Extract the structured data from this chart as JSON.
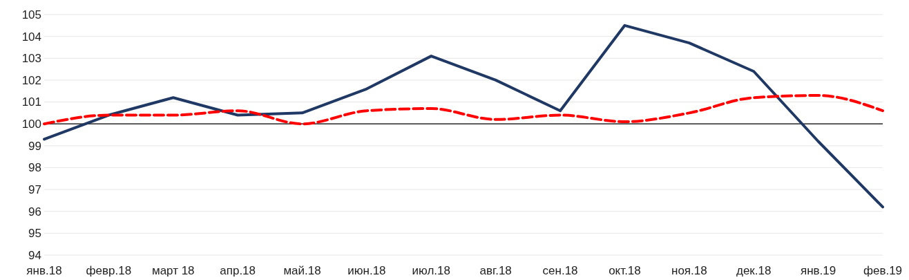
{
  "chart_data": {
    "type": "line",
    "categories": [
      "янв.18",
      "февр.18",
      "март 18",
      "апр.18",
      "май.18",
      "июн.18",
      "июл.18",
      "авг.18",
      "сен.18",
      "окт.18",
      "ноя.18",
      "дек.18",
      "янв.19",
      "фев.19"
    ],
    "series": [
      {
        "color": "#1f3864",
        "line_style": "solid",
        "values": [
          99.3,
          100.4,
          101.2,
          100.4,
          100.5,
          101.6,
          103.1,
          102.0,
          100.6,
          104.5,
          103.7,
          102.4,
          99.2,
          96.2
        ]
      },
      {
        "color": "#ff0000",
        "line_style": "dashed",
        "values": [
          100.0,
          100.4,
          100.4,
          100.6,
          100.0,
          100.6,
          100.7,
          100.2,
          100.4,
          100.1,
          100.5,
          101.2,
          101.3,
          100.6
        ]
      }
    ],
    "ylim": [
      94,
      105
    ],
    "yticks": [
      94,
      95,
      96,
      97,
      98,
      99,
      100,
      101,
      102,
      103,
      104,
      105
    ],
    "grid": "y",
    "ref_lines": [
      {
        "axis": "y",
        "value": 100,
        "color": "#000000"
      }
    ]
  }
}
